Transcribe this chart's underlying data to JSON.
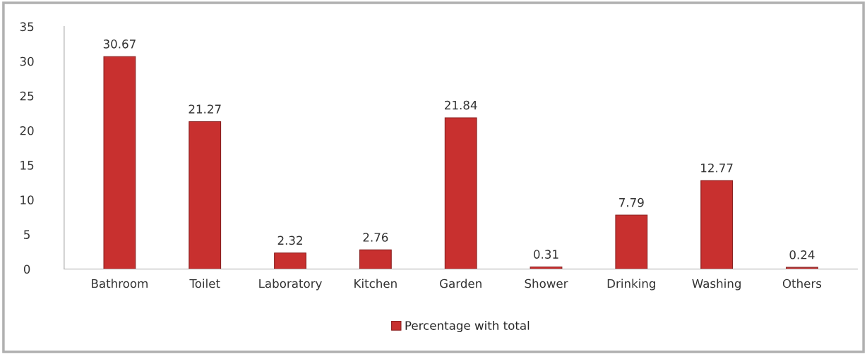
{
  "chart_data": {
    "type": "bar",
    "categories": [
      "Bathroom",
      "Toilet",
      "Laboratory",
      "Kitchen",
      "Garden",
      "Shower",
      "Drinking",
      "Washing",
      "Others"
    ],
    "series": [
      {
        "name": "Percentage with total",
        "color": "#c8302f",
        "values": [
          30.67,
          21.27,
          2.32,
          2.76,
          21.84,
          0.31,
          7.79,
          12.77,
          0.24
        ]
      }
    ],
    "ylim": [
      0,
      35
    ],
    "yticks": [
      0,
      5,
      10,
      15,
      20,
      25,
      30,
      35
    ],
    "data_labels": true,
    "grid": false,
    "legend": "bottom"
  }
}
